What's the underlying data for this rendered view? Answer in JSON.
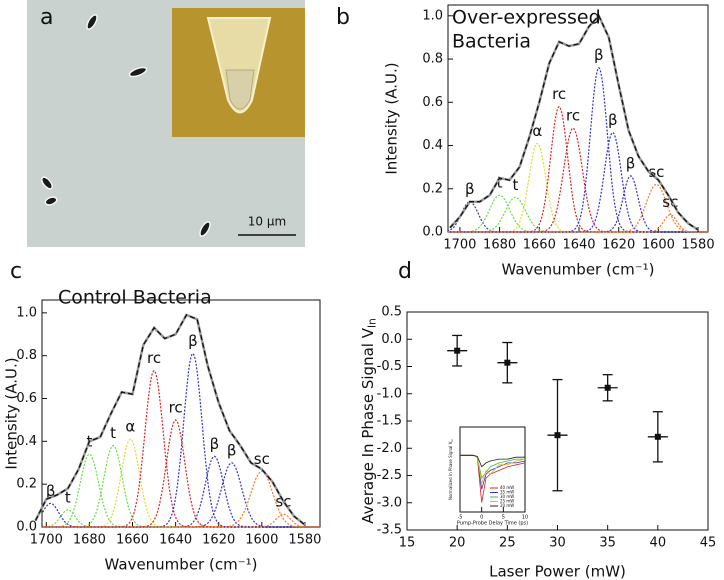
{
  "image": {
    "panel_label": "a",
    "scale_bar_label": "10 μm"
  },
  "chart_data": [
    {
      "type": "spectrum-fit",
      "panel_label": "b",
      "title_lines": [
        "Over-expressed",
        "Bacteria"
      ],
      "xlabel": "Wavenumber (cm⁻¹)",
      "ylabel": "Intensity (A.U.)",
      "xlim": [
        1706,
        1575
      ],
      "xticks": [
        1700,
        1680,
        1660,
        1640,
        1620,
        1600,
        1580
      ],
      "ylim": [
        0,
        1.05
      ],
      "yticks": [
        {
          "value": 0,
          "label": "0.0"
        },
        0.2,
        0.4,
        0.6,
        0.8,
        {
          "value": 1,
          "label": "1.0"
        }
      ],
      "x": [
        1705,
        1700,
        1695,
        1690,
        1685,
        1680,
        1675,
        1670,
        1665,
        1660,
        1655,
        1650,
        1645,
        1640,
        1635,
        1630,
        1625,
        1620,
        1615,
        1610,
        1605,
        1600,
        1595,
        1590,
        1585,
        1580
      ],
      "values": [
        0.02,
        0.07,
        0.14,
        0.14,
        0.17,
        0.25,
        0.24,
        0.3,
        0.44,
        0.6,
        0.78,
        0.88,
        0.86,
        0.87,
        0.95,
        1.0,
        0.9,
        0.68,
        0.47,
        0.35,
        0.28,
        0.24,
        0.17,
        0.09,
        0.04,
        0.01
      ],
      "components": [
        {
          "label": "β",
          "color": "#3333cc",
          "center": 1695,
          "height": 0.14,
          "fwhm": 10
        },
        {
          "label": "t",
          "color": "#66dd44",
          "center": 1680,
          "height": 0.17,
          "fwhm": 12
        },
        {
          "label": "t",
          "color": "#66dd44",
          "center": 1672,
          "height": 0.16,
          "fwhm": 12
        },
        {
          "label": "α",
          "color": "#dddd22",
          "center": 1661,
          "height": 0.41,
          "fwhm": 10
        },
        {
          "label": "rc",
          "color": "#dd2222",
          "center": 1650,
          "height": 0.58,
          "fwhm": 10
        },
        {
          "label": "rc",
          "color": "#dd2222",
          "center": 1643,
          "height": 0.48,
          "fwhm": 11
        },
        {
          "label": "β",
          "color": "#3333cc",
          "center": 1630,
          "height": 0.76,
          "fwhm": 10
        },
        {
          "label": "β",
          "color": "#3333cc",
          "center": 1623,
          "height": 0.46,
          "fwhm": 10
        },
        {
          "label": "β",
          "color": "#3333cc",
          "center": 1614,
          "height": 0.26,
          "fwhm": 9
        },
        {
          "label": "sc",
          "color": "#ff7722",
          "center": 1601,
          "height": 0.22,
          "fwhm": 12
        },
        {
          "label": "sc",
          "color": "#ff7722",
          "center": 1594,
          "height": 0.08,
          "fwhm": 8
        }
      ]
    },
    {
      "type": "spectrum-fit",
      "panel_label": "c",
      "title_lines": [
        "Control Bacteria"
      ],
      "xlabel": "Wavenumber (cm⁻¹)",
      "ylabel": "Intensity (A.U.)",
      "xlim": [
        1702,
        1573
      ],
      "xticks": [
        1700,
        1680,
        1660,
        1640,
        1620,
        1600,
        1580
      ],
      "ylim": [
        0,
        1.06
      ],
      "yticks": [
        {
          "value": 0,
          "label": "0.0"
        },
        0.2,
        0.4,
        0.6,
        0.8,
        {
          "value": 1,
          "label": "1.0"
        }
      ],
      "x": [
        1705,
        1700,
        1695,
        1690,
        1685,
        1680,
        1675,
        1670,
        1665,
        1660,
        1655,
        1650,
        1645,
        1640,
        1635,
        1630,
        1625,
        1620,
        1615,
        1610,
        1605,
        1600,
        1595,
        1590,
        1585,
        1580
      ],
      "values": [
        0.03,
        0.13,
        0.15,
        0.18,
        0.27,
        0.4,
        0.42,
        0.53,
        0.63,
        0.62,
        0.85,
        0.93,
        0.88,
        0.9,
        0.99,
        0.97,
        0.75,
        0.58,
        0.45,
        0.38,
        0.3,
        0.27,
        0.21,
        0.12,
        0.05,
        0.01
      ],
      "components": [
        {
          "label": "β",
          "color": "#3333cc",
          "center": 1698,
          "height": 0.11,
          "fwhm": 9
        },
        {
          "label": "t",
          "color": "#66dd44",
          "center": 1690,
          "height": 0.08,
          "fwhm": 8
        },
        {
          "label": "t",
          "color": "#66dd44",
          "center": 1680,
          "height": 0.34,
          "fwhm": 10
        },
        {
          "label": "t",
          "color": "#66dd44",
          "center": 1669,
          "height": 0.38,
          "fwhm": 10
        },
        {
          "label": "α",
          "color": "#dddd22",
          "center": 1661,
          "height": 0.41,
          "fwhm": 10
        },
        {
          "label": "rc",
          "color": "#dd2222",
          "center": 1650,
          "height": 0.73,
          "fwhm": 10
        },
        {
          "label": "rc",
          "color": "#dd2222",
          "center": 1640,
          "height": 0.5,
          "fwhm": 10
        },
        {
          "label": "β",
          "color": "#3333cc",
          "center": 1632,
          "height": 0.81,
          "fwhm": 10
        },
        {
          "label": "β",
          "color": "#3333cc",
          "center": 1622,
          "height": 0.33,
          "fwhm": 10
        },
        {
          "label": "β",
          "color": "#3333cc",
          "center": 1614,
          "height": 0.3,
          "fwhm": 11
        },
        {
          "label": "sc",
          "color": "#ff7722",
          "center": 1600,
          "height": 0.26,
          "fwhm": 12
        },
        {
          "label": "sc",
          "color": "#ff7722",
          "center": 1590,
          "height": 0.06,
          "fwhm": 8
        }
      ]
    },
    {
      "type": "scatter",
      "panel_label": "d",
      "xlabel": "Laser Power (mW)",
      "ylabel": {
        "text": "Average In Phase Signal V",
        "subscript": "In"
      },
      "xlim": [
        15,
        45
      ],
      "xticks": [
        15,
        20,
        25,
        30,
        35,
        40,
        45
      ],
      "ylim": [
        -3.5,
        0.5
      ],
      "yticks": [
        0.5,
        {
          "value": 0,
          "label": "0.0"
        },
        -0.5,
        {
          "value": -1,
          "label": "-1.0"
        },
        -1.5,
        {
          "value": -2,
          "label": "-2.0"
        },
        -2.5,
        {
          "value": -3,
          "label": "-3.0"
        },
        -3.5
      ],
      "color": "#111111",
      "x": [
        20,
        25,
        30,
        35,
        40
      ],
      "values": [
        -0.21,
        -0.43,
        -1.76,
        -0.89,
        -1.79
      ],
      "xerr": [
        1,
        1,
        1,
        1,
        1
      ],
      "yerr": [
        0.28,
        0.37,
        1.02,
        0.24,
        0.46
      ],
      "inset": {
        "type": "line",
        "xlabel": "Pump-Probe Delay Time (ps)",
        "ylabel": {
          "text": "Normalized In Phase Signal V",
          "subscript": "In"
        },
        "xlim": [
          -5,
          10
        ],
        "xticks": [
          -5,
          0,
          5,
          10
        ],
        "ylim": [
          -3,
          1.5
        ],
        "x": [
          -5,
          -2,
          -1,
          0,
          1,
          2,
          4,
          6,
          8,
          10
        ],
        "series": [
          {
            "name": "40 mW",
            "color": "#dd2222",
            "values": [
              0,
              0,
              -0.1,
              -2.5,
              -1.2,
              -1.0,
              -0.8,
              -0.6,
              -0.5,
              -0.4
            ]
          },
          {
            "name": "35 mW",
            "color": "#3333cc",
            "values": [
              0,
              0,
              -0.1,
              -1.8,
              -1.0,
              -0.8,
              -0.6,
              -0.4,
              -0.4,
              -0.3
            ]
          },
          {
            "name": "30 mW",
            "color": "#44bb44",
            "values": [
              0,
              0,
              -0.1,
              -1.2,
              -0.9,
              -0.6,
              -0.4,
              -0.3,
              -0.2,
              -0.2
            ]
          },
          {
            "name": "25 mW",
            "color": "#ddbb22",
            "values": [
              0,
              0,
              -0.1,
              -1.5,
              -0.8,
              -1.0,
              -0.5,
              -0.5,
              -0.3,
              -0.2
            ]
          },
          {
            "name": "20 mW",
            "color": "#222222",
            "values": [
              0,
              0,
              -0.05,
              -0.6,
              -0.4,
              -0.3,
              -0.2,
              -0.2,
              -0.1,
              -0.1
            ]
          }
        ]
      }
    }
  ]
}
